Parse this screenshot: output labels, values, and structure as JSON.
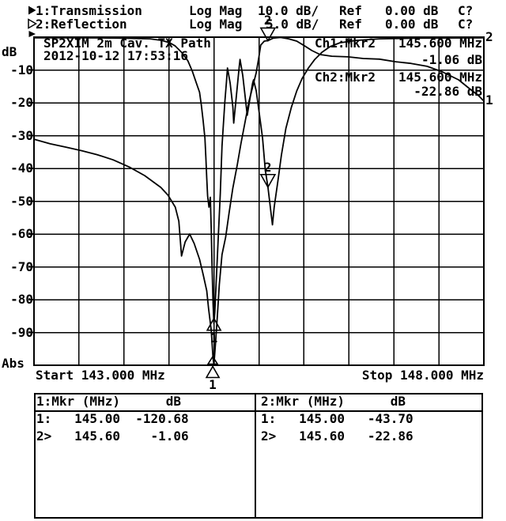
{
  "header": {
    "ch1": {
      "marker_icon": "filled-right-triangle-icon",
      "label": "1:Transmission",
      "format": "Log Mag",
      "scale": "10.0 dB/",
      "ref_label": "Ref",
      "ref_value": "0.00 dB",
      "cal_status": "C?"
    },
    "ch2": {
      "marker_icon": "open-right-triangle-icon",
      "label": "2:Reflection",
      "format": "Log Mag",
      "scale": "5.0 dB/",
      "ref_label": "Ref",
      "ref_value": "0.00 dB",
      "cal_status": "C?"
    }
  },
  "graph": {
    "title": "SP2XIM 2m Cav. TX Path",
    "datetime": "2012-10-12 17:53:16",
    "ch1_readout": {
      "label": "Ch1:Mkr2",
      "freq": "145.600 MHz",
      "value": "-1.06 dB"
    },
    "ch2_readout": {
      "label": "Ch2:Mkr2",
      "freq": "145.600 MHz",
      "value": "-22.86 dB"
    },
    "y_axis": {
      "unit": "dB",
      "ticks": [
        "-10",
        "-20",
        "-30",
        "-40",
        "-50",
        "-60",
        "-70",
        "-80",
        "-90"
      ],
      "bottom_label": "Abs"
    },
    "x_axis": {
      "start": "Start 143.000 MHz",
      "stop": "Stop 148.000 MHz"
    }
  },
  "tables": {
    "ch1": {
      "header": "1:Mkr (MHz)      dB",
      "rows": [
        "1:   145.00  -120.68",
        "2>   145.60    -1.06"
      ]
    },
    "ch2": {
      "header": "2:Mkr (MHz)      dB",
      "rows": [
        "1:   145.00   -43.70",
        "2>   145.60   -22.86"
      ]
    }
  },
  "chart_data": {
    "type": "line",
    "title": "SP2XIM 2m Cav. TX Path",
    "x_unit": "MHz",
    "x_range": [
      143.0,
      148.0
    ],
    "y_unit": "dB",
    "grid": true,
    "series": [
      {
        "name": "Transmission",
        "channel": 1,
        "db_per_div": 10,
        "ref_db": 0,
        "end_label": "1",
        "points": [
          [
            143.0,
            -31.1
          ],
          [
            143.18,
            -32.5
          ],
          [
            143.35,
            -33.5
          ],
          [
            143.53,
            -34.6
          ],
          [
            143.7,
            -35.8
          ],
          [
            143.88,
            -37.4
          ],
          [
            144.06,
            -39.6
          ],
          [
            144.23,
            -42.2
          ],
          [
            144.41,
            -45.8
          ],
          [
            144.49,
            -48.2
          ],
          [
            144.57,
            -51.8
          ],
          [
            144.61,
            -56.1
          ],
          [
            144.64,
            -66.7
          ],
          [
            144.68,
            -62.4
          ],
          [
            144.73,
            -60.0
          ],
          [
            144.78,
            -62.9
          ],
          [
            144.84,
            -67.7
          ],
          [
            144.88,
            -72.3
          ],
          [
            144.92,
            -77.3
          ],
          [
            144.94,
            -82.7
          ],
          [
            144.97,
            -89.4
          ],
          [
            144.99,
            -98.0
          ],
          [
            145.0,
            -120.68
          ],
          [
            145.02,
            -92.3
          ],
          [
            145.04,
            -83.9
          ],
          [
            145.06,
            -75.4
          ],
          [
            145.09,
            -66.3
          ],
          [
            145.13,
            -61.0
          ],
          [
            145.17,
            -53.3
          ],
          [
            145.21,
            -46.0
          ],
          [
            145.26,
            -38.8
          ],
          [
            145.3,
            -32.5
          ],
          [
            145.35,
            -25.3
          ],
          [
            145.39,
            -19.5
          ],
          [
            145.43,
            -15.2
          ],
          [
            145.47,
            -10.8
          ],
          [
            145.5,
            -6.0
          ],
          [
            145.52,
            -2.4
          ],
          [
            145.56,
            -1.2
          ],
          [
            145.6,
            -1.06
          ],
          [
            145.66,
            -0.3
          ],
          [
            145.74,
            -0.1
          ],
          [
            145.83,
            -0.5
          ],
          [
            145.92,
            -1.2
          ],
          [
            146.01,
            -2.7
          ],
          [
            146.09,
            -4.1
          ],
          [
            146.18,
            -5.3
          ],
          [
            146.31,
            -5.8
          ],
          [
            146.49,
            -6.0
          ],
          [
            146.66,
            -6.5
          ],
          [
            146.84,
            -6.7
          ],
          [
            147.02,
            -7.5
          ],
          [
            147.19,
            -8.0
          ],
          [
            147.37,
            -8.9
          ],
          [
            147.54,
            -10.6
          ],
          [
            147.72,
            -13.0
          ],
          [
            147.85,
            -15.9
          ],
          [
            147.94,
            -17.8
          ],
          [
            148.0,
            -19.5
          ]
        ]
      },
      {
        "name": "Reflection",
        "channel": 2,
        "db_per_div": 5,
        "ref_db": 0,
        "end_label": "2",
        "points": [
          [
            143.0,
            -0.1
          ],
          [
            143.5,
            -0.1
          ],
          [
            143.94,
            -0.15
          ],
          [
            144.29,
            -0.25
          ],
          [
            144.42,
            -0.5
          ],
          [
            144.51,
            -0.85
          ],
          [
            144.57,
            -1.35
          ],
          [
            144.64,
            -2.3
          ],
          [
            144.71,
            -3.6
          ],
          [
            144.76,
            -5.2
          ],
          [
            144.8,
            -6.8
          ],
          [
            144.84,
            -8.4
          ],
          [
            144.86,
            -10.4
          ],
          [
            144.88,
            -12.7
          ],
          [
            144.9,
            -15.4
          ],
          [
            144.91,
            -18.4
          ],
          [
            144.92,
            -21.5
          ],
          [
            144.93,
            -24.2
          ],
          [
            144.945,
            -25.9
          ],
          [
            144.96,
            -24.4
          ],
          [
            144.97,
            -29.3
          ],
          [
            144.98,
            -35.3
          ],
          [
            144.99,
            -40.7
          ],
          [
            145.0,
            -43.7
          ],
          [
            145.01,
            -41.9
          ],
          [
            145.03,
            -35.9
          ],
          [
            145.05,
            -29.9
          ],
          [
            145.07,
            -23.9
          ],
          [
            145.09,
            -16.6
          ],
          [
            145.12,
            -10.0
          ],
          [
            145.14,
            -6.7
          ],
          [
            145.15,
            -4.7
          ],
          [
            145.18,
            -7.0
          ],
          [
            145.21,
            -10.6
          ],
          [
            145.22,
            -13.1
          ],
          [
            145.25,
            -8.8
          ],
          [
            145.28,
            -4.6
          ],
          [
            145.29,
            -3.4
          ],
          [
            145.32,
            -5.8
          ],
          [
            145.35,
            -9.4
          ],
          [
            145.37,
            -11.9
          ],
          [
            145.4,
            -9.4
          ],
          [
            145.43,
            -7.0
          ],
          [
            145.44,
            -6.5
          ],
          [
            145.47,
            -8.2
          ],
          [
            145.5,
            -11.2
          ],
          [
            145.54,
            -15.4
          ],
          [
            145.57,
            -20.2
          ],
          [
            145.6,
            -22.86
          ],
          [
            145.63,
            -26.3
          ],
          [
            145.65,
            -28.6
          ],
          [
            145.67,
            -25.9
          ],
          [
            145.71,
            -22.0
          ],
          [
            145.75,
            -18.0
          ],
          [
            145.8,
            -13.9
          ],
          [
            145.86,
            -10.7
          ],
          [
            145.92,
            -8.2
          ],
          [
            145.98,
            -6.3
          ],
          [
            146.05,
            -4.7
          ],
          [
            146.12,
            -3.4
          ],
          [
            146.2,
            -2.3
          ],
          [
            146.29,
            -1.45
          ],
          [
            146.4,
            -0.85
          ],
          [
            146.58,
            -0.5
          ],
          [
            146.84,
            -0.25
          ],
          [
            147.28,
            -0.15
          ],
          [
            148.0,
            -0.1
          ]
        ]
      }
    ],
    "markers": [
      {
        "channel": 1,
        "n": "1",
        "freq_mhz": 145.0,
        "db": -120.68
      },
      {
        "channel": 1,
        "n": "2",
        "freq_mhz": 145.6,
        "db": -1.06
      },
      {
        "channel": 2,
        "n": "1",
        "freq_mhz": 145.0,
        "db": -43.7
      },
      {
        "channel": 2,
        "n": "2",
        "freq_mhz": 145.6,
        "db": -22.86
      }
    ]
  }
}
